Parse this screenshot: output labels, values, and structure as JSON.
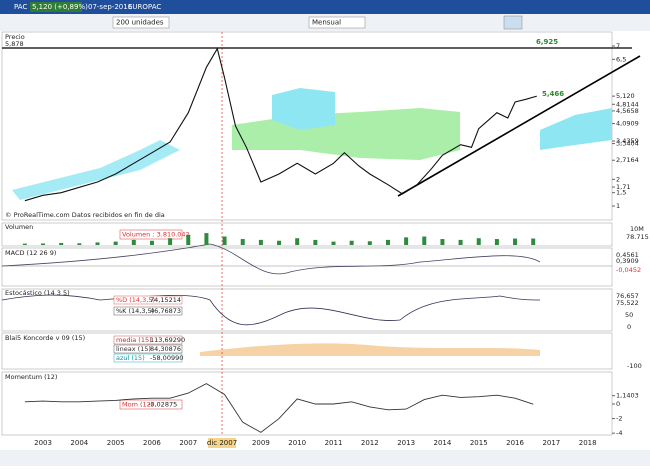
{
  "header": {
    "symbol": "PAC",
    "quote": "5,120 (+0,89%)",
    "date": "07-sep-2016",
    "name": "EUROPAC"
  },
  "toolbar": {
    "units": "200 unidades",
    "period": "Mensual"
  },
  "price_panel": {
    "title": "Precio",
    "top_value": "5,878",
    "x": [
      2002.5,
      2003,
      2003.5,
      2004,
      2004.5,
      2005,
      2005.5,
      2006,
      2006.5,
      2007,
      2007.5,
      2007.8,
      2008,
      2008.3,
      2008.6,
      2009,
      2009.5,
      2010,
      2010.5,
      2011,
      2011.3,
      2011.7,
      2012,
      2012.5,
      2012.9,
      2013.3,
      2013.7,
      2014,
      2014.5,
      2014.8,
      2015,
      2015.5,
      2015.8,
      2016,
      2016.3,
      2016.6
    ],
    "values": [
      1.2,
      1.4,
      1.5,
      1.7,
      1.9,
      2.2,
      2.6,
      3.0,
      3.4,
      4.5,
      6.2,
      6.9,
      5.8,
      4.0,
      3.2,
      1.9,
      2.2,
      2.6,
      2.2,
      2.6,
      3.0,
      2.5,
      2.2,
      1.8,
      1.45,
      1.8,
      2.4,
      2.9,
      3.3,
      3.2,
      3.9,
      4.5,
      4.3,
      4.9,
      5.0,
      5.12
    ],
    "ylim": [
      1,
      7
    ],
    "yticks": [
      7,
      {
        "value": 6.5,
        "label": "6,5"
      },
      {
        "value": 5.12,
        "label": "5,120"
      },
      {
        "value": 4.8144,
        "label": "4,8144"
      },
      {
        "value": 4.5658,
        "label": "4,5658"
      },
      {
        "value": 4.0909,
        "label": "4,0909"
      },
      {
        "value": 3.4359,
        "label": "3,4359"
      },
      {
        "value": 3.3404,
        "label": "3,3404"
      },
      {
        "value": 2.7164,
        "label": "2,7164"
      },
      2,
      {
        "value": 1.71,
        "label": "1,71"
      },
      {
        "value": 1.5,
        "label": "1,5"
      },
      1
    ],
    "annotations": [
      {
        "value": 6.925,
        "label": "6,925"
      },
      {
        "value": 5.466,
        "label": "5,466"
      }
    ],
    "footer": "© ProRealTime.com  Datos recibidos en fin de dia"
  },
  "volume_panel": {
    "title": "Volumen",
    "legend": "Volumen : 3.810.042",
    "right_labels": [
      "10M",
      "78.715"
    ],
    "x": [
      2002.5,
      2003,
      2003.5,
      2004,
      2004.5,
      2005,
      2005.5,
      2006,
      2006.5,
      2007,
      2007.5,
      2008,
      2008.5,
      2009,
      2009.5,
      2010,
      2010.5,
      2011,
      2011.5,
      2012,
      2012.5,
      2013,
      2013.5,
      2014,
      2014.5,
      2015,
      2015.5,
      2016,
      2016.5
    ],
    "values": [
      800000,
      900000,
      1200000,
      1000000,
      1500000,
      2000000,
      3000000,
      2500000,
      4000000,
      6000000,
      7000000,
      5000000,
      3500000,
      3000000,
      2500000,
      4000000,
      3000000,
      2000000,
      2500000,
      2200000,
      3000000,
      4500000,
      5000000,
      3500000,
      3000000,
      4000000,
      3500000,
      3800000,
      3810042
    ],
    "ylim": [
      0,
      10000000
    ]
  },
  "macd_panel": {
    "title": "MACD (12 26 9)",
    "right_labels": [
      "0,4561",
      "0,3909",
      "-0,0452"
    ]
  },
  "stoch_panel": {
    "title": "Estocástico (14 3 5)",
    "d_name": "%D (14,3,5)",
    "d_value": "74,15214",
    "k_name": "%K (14,3,5)",
    "k_value": "46,76873",
    "right_labels": [
      "76,657",
      "75,522",
      "50",
      "0"
    ]
  },
  "koncorde_panel": {
    "title": "Blai5 Koncorde v 09 (15)",
    "rows": [
      [
        "media (15)",
        "113,69290"
      ],
      [
        "lineax (15)",
        "84,30876"
      ],
      [
        "azul (15)",
        "-58,00990"
      ]
    ],
    "right_labels": [
      "-100"
    ]
  },
  "momentum_panel": {
    "title": "Momentum (12)",
    "legend_name": "Mom (12)",
    "legend_value": "-0,02875",
    "x": [
      2002.5,
      2003,
      2003.5,
      2004,
      2004.5,
      2005,
      2005.5,
      2006,
      2006.5,
      2007,
      2007.5,
      2008,
      2008.5,
      2009,
      2009.5,
      2010,
      2010.5,
      2011,
      2011.5,
      2012,
      2012.5,
      2013,
      2013.5,
      2014,
      2014.5,
      2015,
      2015.5,
      2016,
      2016.5
    ],
    "values": [
      0.3,
      0.4,
      0.3,
      0.3,
      0.4,
      0.5,
      0.7,
      0.8,
      0.8,
      1.5,
      2.8,
      1.3,
      -2.5,
      -3.9,
      -2.0,
      0.7,
      0.0,
      0.0,
      0.3,
      -0.4,
      -0.8,
      -0.7,
      0.6,
      1.2,
      0.9,
      1.0,
      1.2,
      0.8,
      -0.02875
    ],
    "ylim": [
      -4.25,
      4.25
    ],
    "yticks": [
      {
        "value": 1.1403,
        "label": "1,1403"
      },
      0,
      -2,
      -4
    ]
  },
  "x_axis": {
    "xlim": [
      2001.87,
      2018.67
    ],
    "xticks": [
      2003,
      2004,
      2005,
      2006,
      2007,
      2009,
      2010,
      2011,
      2012,
      2013,
      2014,
      2015,
      2016,
      2017,
      2018
    ],
    "cursor": {
      "value": 2007.93,
      "label": "dic 2007"
    }
  }
}
